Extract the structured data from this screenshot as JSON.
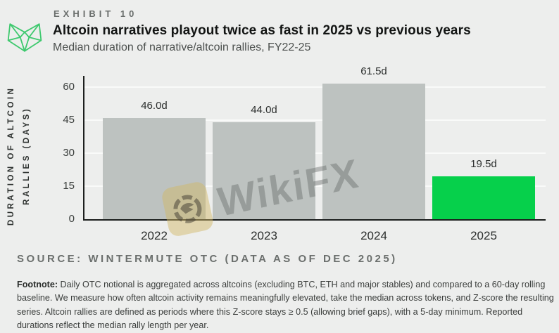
{
  "header": {
    "exhibit_label": "EXHIBIT 10",
    "title": "Altcoin narratives playout twice as fast in 2025 vs previous years",
    "subtitle": "Median duration of narrative/altcoin rallies, FY22-25",
    "logo_icon": "wintermute-logo",
    "logo_color": "#3ec96e"
  },
  "chart_data": {
    "type": "bar",
    "title": "Altcoin narratives playout twice as fast in 2025 vs previous years",
    "subtitle": "Median duration of narrative/altcoin rallies, FY22-25",
    "categories": [
      "2022",
      "2023",
      "2024",
      "2025"
    ],
    "values": [
      46.0,
      44.0,
      61.5,
      19.5
    ],
    "value_labels": [
      "46.0d",
      "44.0d",
      "61.5d",
      "19.5d"
    ],
    "xlabel": "",
    "ylabel_line1": "DURATION OF ALTCOIN",
    "ylabel_line2": "RALLIES (DAYS)",
    "yticks": [
      0,
      15,
      30,
      45,
      60
    ],
    "ylim": [
      0,
      65
    ],
    "grid": "horizontal",
    "legend": "none",
    "bar_colors": [
      "#bdc2c0",
      "#bdc2c0",
      "#bdc2c0",
      "#06d04b"
    ],
    "highlight_color": "#06d04b",
    "default_bar_color": "#bdc2c0"
  },
  "watermark": {
    "text": "WikiFX",
    "icon": "wikifx-eagle-badge"
  },
  "footer": {
    "source": "SOURCE: WINTERMUTE OTC (DATA AS OF DEC 2025)",
    "footnote_label": "Footnote:",
    "footnote_text": " Daily OTC notional is aggregated across altcoins (excluding BTC, ETH and major stables) and compared to a 60-day rolling baseline. We measure how often altcoin activity remains meaningfully elevated, take the median across tokens, and Z-score the resulting series. Altcoin rallies are defined as periods where this Z-score stays ≥ 0.5 (allowing brief gaps), with a 5-day minimum. Reported durations reflect the median rally length per year."
  }
}
